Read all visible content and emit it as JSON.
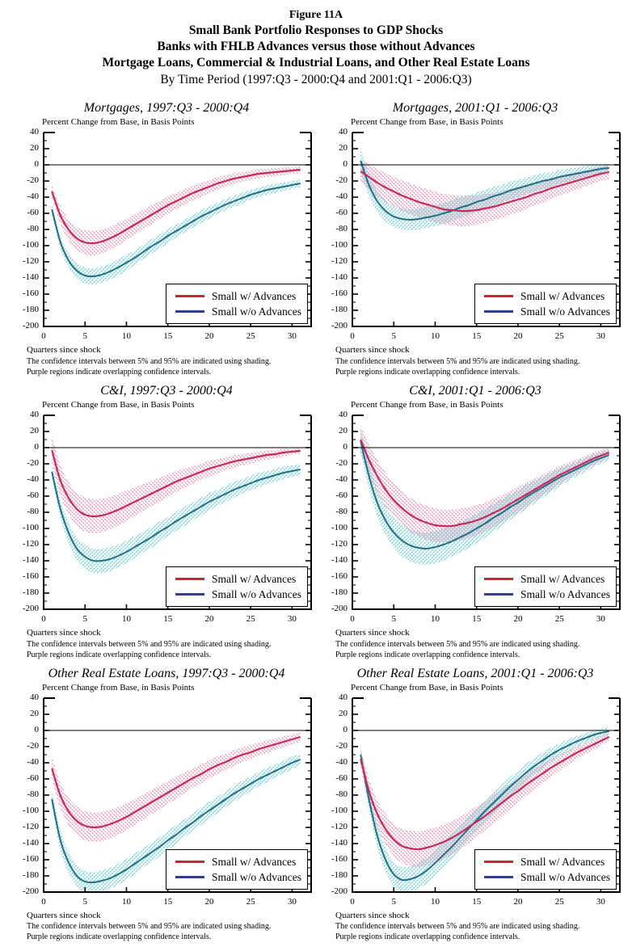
{
  "header": {
    "lines": [
      "Figure 11A",
      "Small Bank Portfolio Responses to GDP Shocks",
      "Banks with FHLB Advances versus those without Advances",
      "Mortgage Loans, Commercial & Industrial Loans, and Other Real Estate Loans",
      "By Time Period (1997:Q3 - 2000:Q4 and 2001:Q1 - 2006:Q3)"
    ]
  },
  "shared": {
    "y_axis_label": "Percent Change from Base, in Basis Points",
    "x_axis_label": "Quarters since shock",
    "footnote1": "The confidence intervals between 5% and 95% are indicated using shading.",
    "footnote2": "Purple regions indicate overlapping confidence intervals.",
    "legend_labels": [
      "Small w/ Advances",
      "Small w/o Advances"
    ],
    "y_ticks": [
      40,
      20,
      0,
      -20,
      -40,
      -60,
      -80,
      -100,
      -120,
      -140,
      -160,
      -180,
      -200
    ],
    "x_ticks": [
      0,
      5,
      10,
      15,
      20,
      25,
      30
    ],
    "x_quarters": [
      1,
      2,
      3,
      4,
      5,
      6,
      7,
      8,
      9,
      10,
      11,
      12,
      13,
      14,
      15,
      16,
      17,
      18,
      19,
      20,
      21,
      22,
      23,
      24,
      25,
      26,
      27,
      28,
      29,
      30,
      31
    ],
    "colors": {
      "with_advances_line": "#C62A5A",
      "with_advances_band": "#E27BA8",
      "without_advances_line": "#1F6F87",
      "without_advances_band": "#6FD0D6",
      "legend_red": "#CC2433",
      "legend_navy": "#333D8F",
      "axis": "#000000"
    }
  },
  "chart_data": [
    {
      "type": "line",
      "title": "Mortgages, 1997:Q3 - 2000:Q4",
      "xlabel": "Quarters since shock",
      "ylabel": "Percent Change from Base, in Basis Points",
      "xlim": [
        0,
        32.3
      ],
      "ylim": [
        -200,
        40
      ],
      "legend_position": "inside-bottom-right",
      "series": [
        {
          "name": "Small w/ Advances",
          "values": [
            -33,
            -62,
            -80,
            -91,
            -96,
            -97,
            -95,
            -91,
            -86,
            -80,
            -74,
            -68,
            -62,
            -56,
            -50,
            -45,
            -40,
            -35,
            -31,
            -27,
            -23,
            -20,
            -17,
            -15,
            -13,
            -11,
            -10,
            -9,
            -8,
            -7,
            -6
          ],
          "ci_halfwidth": [
            8,
            11,
            13,
            14,
            15,
            15,
            15,
            14,
            14,
            13,
            13,
            12,
            12,
            11,
            11,
            10,
            10,
            9,
            9,
            8,
            8,
            7,
            7,
            6,
            6,
            6,
            5,
            5,
            5,
            4,
            4
          ]
        },
        {
          "name": "Small w/o Advances",
          "values": [
            -55,
            -95,
            -118,
            -131,
            -137,
            -138,
            -136,
            -132,
            -127,
            -121,
            -115,
            -108,
            -101,
            -95,
            -88,
            -82,
            -76,
            -70,
            -64,
            -59,
            -54,
            -49,
            -45,
            -41,
            -37,
            -34,
            -31,
            -29,
            -27,
            -25,
            -23
          ],
          "ci_halfwidth": [
            6,
            8,
            9,
            10,
            10,
            10,
            10,
            10,
            10,
            10,
            9,
            9,
            9,
            9,
            9,
            8,
            8,
            8,
            8,
            8,
            7,
            7,
            7,
            7,
            6,
            6,
            6,
            6,
            5,
            5,
            5
          ]
        }
      ]
    },
    {
      "type": "line",
      "title": "Mortgages, 2001:Q1 - 2006:Q3",
      "xlabel": "Quarters since shock",
      "ylabel": "Percent Change from Base, in Basis Points",
      "xlim": [
        0,
        32.3
      ],
      "ylim": [
        -200,
        40
      ],
      "legend_position": "inside-bottom-right",
      "series": [
        {
          "name": "Small w/ Advances",
          "values": [
            -8,
            -15,
            -22,
            -28,
            -33,
            -38,
            -42,
            -46,
            -49,
            -52,
            -55,
            -56,
            -57,
            -57,
            -56,
            -54,
            -52,
            -49,
            -46,
            -43,
            -40,
            -36,
            -33,
            -29,
            -26,
            -23,
            -20,
            -17,
            -14,
            -11,
            -9
          ],
          "ci_halfwidth": [
            14,
            16,
            17,
            18,
            18,
            19,
            19,
            19,
            19,
            19,
            19,
            19,
            19,
            19,
            18,
            18,
            17,
            17,
            16,
            16,
            15,
            14,
            14,
            13,
            12,
            12,
            11,
            10,
            10,
            9,
            9
          ]
        },
        {
          "name": "Small w/o Advances",
          "values": [
            5,
            -25,
            -45,
            -57,
            -64,
            -67,
            -68,
            -67,
            -65,
            -63,
            -60,
            -57,
            -53,
            -50,
            -46,
            -43,
            -39,
            -36,
            -32,
            -29,
            -26,
            -23,
            -20,
            -18,
            -15,
            -13,
            -11,
            -9,
            -7,
            -5,
            -4
          ],
          "ci_halfwidth": [
            15,
            14,
            13,
            13,
            13,
            13,
            13,
            13,
            13,
            13,
            13,
            13,
            13,
            12,
            12,
            12,
            12,
            11,
            11,
            11,
            10,
            10,
            10,
            9,
            9,
            8,
            8,
            7,
            7,
            6,
            6
          ]
        }
      ]
    },
    {
      "type": "line",
      "title": "C&I, 1997:Q3 - 2000:Q4",
      "xlabel": "Quarters since shock",
      "ylabel": "Percent Change from Base, in Basis Points",
      "xlim": [
        0,
        32.3
      ],
      "ylim": [
        -200,
        40
      ],
      "legend_position": "inside-bottom-right",
      "series": [
        {
          "name": "Small w/ Advances",
          "values": [
            -3,
            -40,
            -62,
            -76,
            -83,
            -85,
            -84,
            -81,
            -77,
            -72,
            -67,
            -62,
            -57,
            -52,
            -47,
            -42,
            -38,
            -34,
            -30,
            -26,
            -23,
            -20,
            -17,
            -15,
            -13,
            -11,
            -9,
            -8,
            -6,
            -5,
            -4
          ],
          "ci_halfwidth": [
            17,
            19,
            20,
            21,
            21,
            21,
            21,
            20,
            20,
            19,
            18,
            17,
            16,
            15,
            14,
            13,
            12,
            11,
            10,
            10,
            9,
            8,
            8,
            7,
            7,
            6,
            6,
            5,
            5,
            4,
            4
          ]
        },
        {
          "name": "Small w/o Advances",
          "values": [
            -30,
            -75,
            -105,
            -125,
            -135,
            -140,
            -140,
            -138,
            -134,
            -129,
            -123,
            -117,
            -111,
            -104,
            -98,
            -91,
            -85,
            -79,
            -73,
            -67,
            -62,
            -57,
            -52,
            -48,
            -44,
            -40,
            -37,
            -34,
            -31,
            -29,
            -27
          ],
          "ci_halfwidth": [
            8,
            11,
            13,
            14,
            15,
            15,
            15,
            15,
            14,
            14,
            14,
            13,
            13,
            13,
            12,
            12,
            12,
            11,
            11,
            11,
            10,
            10,
            10,
            9,
            9,
            9,
            8,
            8,
            8,
            7,
            7
          ]
        }
      ]
    },
    {
      "type": "line",
      "title": "C&I, 2001:Q1 - 2006:Q3",
      "xlabel": "Quarters since shock",
      "ylabel": "Percent Change from Base, in Basis Points",
      "xlim": [
        0,
        32.3
      ],
      "ylim": [
        -200,
        40
      ],
      "legend_position": "inside-bottom-right",
      "series": [
        {
          "name": "Small w/ Advances",
          "values": [
            10,
            -15,
            -35,
            -52,
            -65,
            -75,
            -83,
            -89,
            -93,
            -96,
            -97,
            -97,
            -95,
            -93,
            -90,
            -86,
            -81,
            -76,
            -70,
            -64,
            -58,
            -52,
            -46,
            -40,
            -34,
            -29,
            -24,
            -19,
            -14,
            -10,
            -6
          ],
          "ci_halfwidth": [
            18,
            19,
            20,
            21,
            21,
            21,
            21,
            21,
            21,
            21,
            20,
            20,
            20,
            19,
            19,
            18,
            18,
            17,
            16,
            16,
            15,
            14,
            13,
            12,
            11,
            10,
            9,
            8,
            8,
            7,
            6
          ]
        },
        {
          "name": "Small w/o Advances",
          "values": [
            8,
            -35,
            -68,
            -90,
            -105,
            -115,
            -121,
            -124,
            -125,
            -123,
            -120,
            -116,
            -111,
            -106,
            -100,
            -94,
            -87,
            -81,
            -74,
            -68,
            -61,
            -55,
            -49,
            -43,
            -37,
            -32,
            -27,
            -22,
            -17,
            -13,
            -9
          ],
          "ci_halfwidth": [
            14,
            16,
            17,
            18,
            19,
            20,
            20,
            20,
            20,
            20,
            20,
            19,
            19,
            19,
            18,
            18,
            17,
            17,
            16,
            15,
            15,
            14,
            13,
            12,
            11,
            10,
            9,
            9,
            8,
            7,
            7
          ]
        }
      ]
    },
    {
      "type": "line",
      "title": "Other Real Estate Loans, 1997:Q3 - 2000:Q4",
      "xlabel": "Quarters since shock",
      "ylabel": "Percent Change from Base, in Basis Points",
      "xlim": [
        0,
        32.3
      ],
      "ylim": [
        -200,
        40
      ],
      "legend_position": "inside-bottom-right",
      "series": [
        {
          "name": "Small w/ Advances",
          "values": [
            -47,
            -80,
            -100,
            -112,
            -118,
            -120,
            -119,
            -116,
            -112,
            -107,
            -101,
            -95,
            -89,
            -83,
            -77,
            -71,
            -65,
            -59,
            -54,
            -48,
            -43,
            -39,
            -34,
            -30,
            -27,
            -23,
            -20,
            -17,
            -14,
            -11,
            -8
          ],
          "ci_halfwidth": [
            14,
            16,
            17,
            18,
            18,
            18,
            18,
            18,
            17,
            17,
            16,
            16,
            15,
            15,
            14,
            14,
            13,
            12,
            12,
            11,
            11,
            10,
            10,
            9,
            9,
            8,
            8,
            7,
            7,
            6,
            6
          ]
        },
        {
          "name": "Small w/o Advances",
          "values": [
            -85,
            -135,
            -163,
            -180,
            -187,
            -188,
            -186,
            -183,
            -178,
            -172,
            -165,
            -158,
            -151,
            -144,
            -136,
            -129,
            -121,
            -114,
            -106,
            -99,
            -92,
            -85,
            -78,
            -72,
            -66,
            -60,
            -55,
            -50,
            -45,
            -40,
            -36
          ],
          "ci_halfwidth": [
            10,
            12,
            13,
            13,
            13,
            13,
            13,
            13,
            13,
            13,
            13,
            12,
            12,
            12,
            12,
            12,
            11,
            11,
            11,
            11,
            10,
            10,
            10,
            10,
            9,
            9,
            9,
            8,
            8,
            8,
            7
          ]
        }
      ]
    },
    {
      "type": "line",
      "title": "Other Real Estate Loans, 2001:Q1 - 2006:Q3",
      "xlabel": "Quarters since shock",
      "ylabel": "Percent Change from Base, in Basis Points",
      "xlim": [
        0,
        32.3
      ],
      "ylim": [
        -200,
        40
      ],
      "legend_position": "inside-bottom-right",
      "series": [
        {
          "name": "Small w/ Advances",
          "values": [
            -35,
            -75,
            -103,
            -122,
            -135,
            -143,
            -146,
            -147,
            -145,
            -142,
            -138,
            -133,
            -127,
            -120,
            -113,
            -106,
            -98,
            -90,
            -82,
            -75,
            -67,
            -60,
            -53,
            -46,
            -40,
            -34,
            -28,
            -23,
            -18,
            -13,
            -8
          ],
          "ci_halfwidth": [
            12,
            15,
            17,
            19,
            20,
            21,
            22,
            22,
            22,
            22,
            21,
            21,
            20,
            20,
            19,
            18,
            18,
            17,
            16,
            15,
            14,
            13,
            12,
            11,
            10,
            9,
            8,
            7,
            7,
            6,
            5
          ]
        },
        {
          "name": "Small w/o Advances",
          "values": [
            -30,
            -85,
            -130,
            -160,
            -178,
            -185,
            -184,
            -180,
            -173,
            -164,
            -154,
            -144,
            -133,
            -122,
            -111,
            -100,
            -90,
            -80,
            -70,
            -61,
            -52,
            -44,
            -37,
            -30,
            -24,
            -19,
            -14,
            -10,
            -6,
            -3,
            -1
          ],
          "ci_halfwidth": [
            10,
            13,
            14,
            15,
            15,
            16,
            16,
            16,
            16,
            15,
            15,
            15,
            14,
            14,
            14,
            13,
            13,
            12,
            12,
            11,
            11,
            10,
            10,
            9,
            8,
            8,
            7,
            6,
            6,
            5,
            5
          ]
        }
      ]
    }
  ]
}
